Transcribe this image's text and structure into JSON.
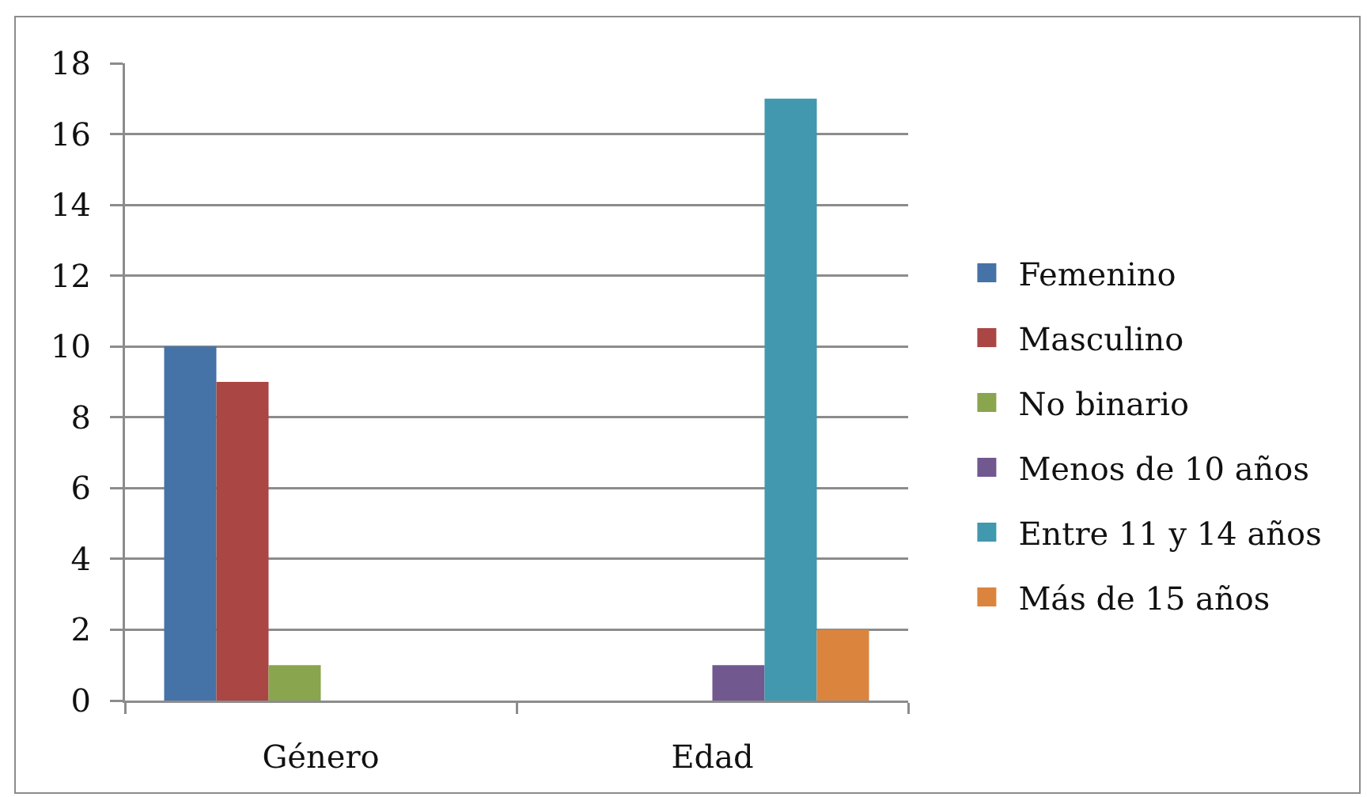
{
  "chart_data": {
    "type": "bar",
    "categories": [
      "Género",
      "Edad"
    ],
    "series": [
      {
        "name": "Femenino",
        "color": "#4572a7",
        "values": [
          10,
          null
        ]
      },
      {
        "name": "Masculino",
        "color": "#aa4643",
        "values": [
          9,
          null
        ]
      },
      {
        "name": "No binario",
        "color": "#89a54e",
        "values": [
          1,
          null
        ]
      },
      {
        "name": "Menos de 10 años",
        "color": "#71588f",
        "values": [
          null,
          1
        ]
      },
      {
        "name": "Entre 11 y 14 años",
        "color": "#4198af",
        "values": [
          null,
          17
        ]
      },
      {
        "name": "Más de 15 años",
        "color": "#db843d",
        "values": [
          null,
          2
        ]
      }
    ],
    "ylim": [
      0,
      18
    ],
    "yticks": [
      0,
      2,
      4,
      6,
      8,
      10,
      12,
      14,
      16,
      18
    ],
    "grid": "y",
    "legend": "right"
  }
}
